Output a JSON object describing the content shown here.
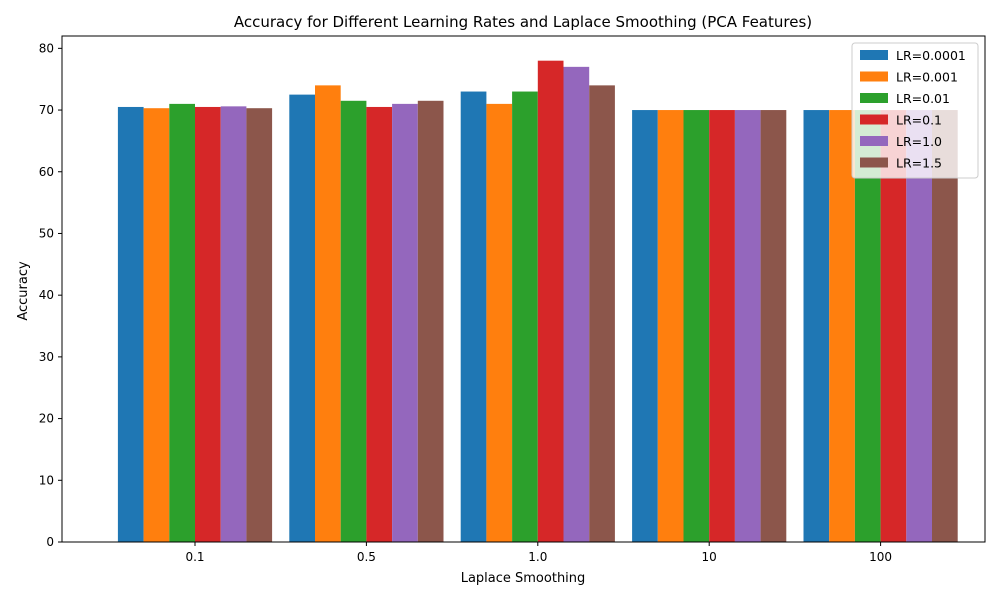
{
  "chart_data": {
    "type": "bar",
    "title": "Accuracy for Different Learning Rates and Laplace Smoothing (PCA Features)",
    "xlabel": "Laplace Smoothing",
    "ylabel": "Accuracy",
    "categories": [
      "0.1",
      "0.5",
      "1.0",
      "10",
      "100"
    ],
    "ylim": [
      0,
      82
    ],
    "yticks": [
      0,
      10,
      20,
      30,
      40,
      50,
      60,
      70,
      80
    ],
    "grid": false,
    "legend_position": "top-right",
    "series": [
      {
        "name": "LR=0.0001",
        "color": "#1f77b4",
        "values": [
          70.5,
          72.5,
          73.0,
          70.0,
          70.0
        ]
      },
      {
        "name": "LR=0.001",
        "color": "#ff7f0e",
        "values": [
          70.3,
          74.0,
          71.0,
          70.0,
          70.0
        ]
      },
      {
        "name": "LR=0.01",
        "color": "#2ca02c",
        "values": [
          71.0,
          71.5,
          73.0,
          70.0,
          70.0
        ]
      },
      {
        "name": "LR=0.1",
        "color": "#d62728",
        "values": [
          70.5,
          70.5,
          78.0,
          70.0,
          70.0
        ]
      },
      {
        "name": "LR=1.0",
        "color": "#9467bd",
        "values": [
          70.6,
          71.0,
          77.0,
          70.0,
          70.0
        ]
      },
      {
        "name": "LR=1.5",
        "color": "#8c564b",
        "values": [
          70.3,
          71.5,
          74.0,
          70.0,
          70.0
        ]
      }
    ]
  }
}
